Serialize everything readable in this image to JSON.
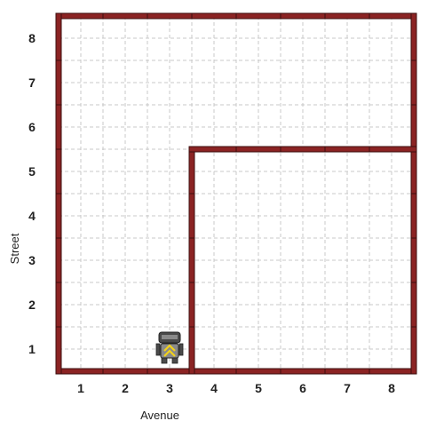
{
  "world": {
    "x_axis_label": "Avenue",
    "y_axis_label": "Street",
    "avenues": [
      "1",
      "2",
      "3",
      "4",
      "5",
      "6",
      "7",
      "8"
    ],
    "streets": [
      "1",
      "2",
      "3",
      "4",
      "5",
      "6",
      "7",
      "8"
    ],
    "colors": {
      "wall": "#8b2323",
      "wall_edge": "#3c0f0f",
      "grid": "#c8c8c8",
      "robot_body": "#8a8a8a",
      "robot_dark": "#4a4a4a",
      "robot_arrow": "#f2d21b"
    }
  },
  "robot": {
    "icon": "robot-icon",
    "avenue": 3,
    "street": 1,
    "facing": "north"
  },
  "walls": {
    "boundary": {
      "avenue_from": 0.5,
      "avenue_to": 8.5,
      "street_from": 0.5,
      "street_to": 8.5
    },
    "segments": [
      {
        "orientation": "vertical",
        "avenue": 3.5,
        "street_from": 0.5,
        "street_to": 5.5
      },
      {
        "orientation": "horizontal",
        "street": 5.5,
        "avenue_from": 3.5,
        "avenue_to": 8.5
      }
    ]
  }
}
